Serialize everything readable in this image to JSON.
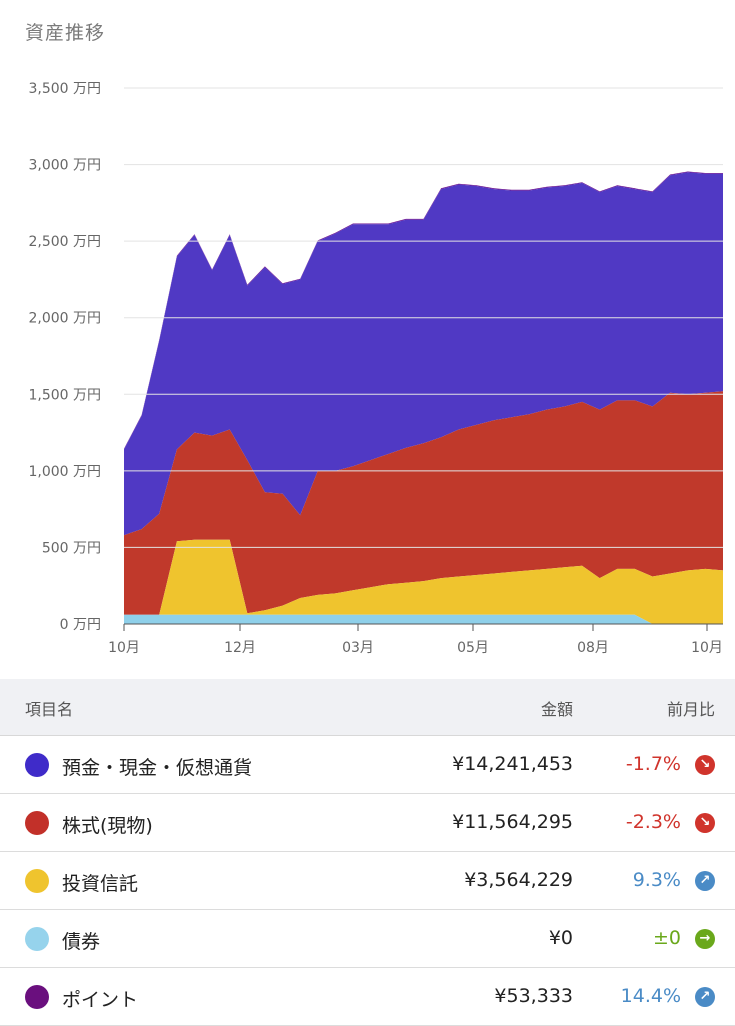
{
  "section_title": "資産推移",
  "chart_data": {
    "type": "area",
    "y_ticks": [
      "3,500 万円",
      "3,000 万円",
      "2,500 万円",
      "2,000 万円",
      "1,500 万円",
      "1,000 万円",
      "500 万円",
      "0 万円"
    ],
    "x_ticks": [
      "10月",
      "12月",
      "03月",
      "05月",
      "08月",
      "10月"
    ],
    "ylim": [
      0,
      3500
    ],
    "stacked": true,
    "series": [
      {
        "name": "債券",
        "color": "#8fd0ea",
        "values": [
          60,
          60,
          60,
          60,
          60,
          60,
          60,
          60,
          60,
          60,
          60,
          60,
          60,
          60,
          60,
          60,
          60,
          60,
          60,
          60,
          60,
          60,
          60,
          60,
          60,
          60,
          60,
          60,
          60,
          60,
          0,
          0,
          0,
          0,
          0
        ]
      },
      {
        "name": "投資信託",
        "color": "#efc42e",
        "values": [
          0,
          0,
          0,
          480,
          490,
          490,
          490,
          10,
          30,
          60,
          110,
          130,
          140,
          160,
          180,
          200,
          210,
          220,
          240,
          250,
          260,
          270,
          280,
          290,
          300,
          310,
          320,
          240,
          300,
          300,
          310,
          330,
          350,
          360,
          350
        ]
      },
      {
        "name": "株式(現物)",
        "color": "#c0392b",
        "values": [
          520,
          560,
          660,
          600,
          700,
          680,
          720,
          1000,
          770,
          730,
          540,
          810,
          800,
          810,
          830,
          850,
          880,
          900,
          920,
          960,
          980,
          1000,
          1010,
          1020,
          1040,
          1050,
          1070,
          1100,
          1100,
          1100,
          1110,
          1180,
          1150,
          1150,
          1170
        ]
      },
      {
        "name": "預金・現金・仮想通貨",
        "color": "#5039c4",
        "values": [
          560,
          740,
          1130,
          1260,
          1290,
          1080,
          1270,
          1140,
          1470,
          1370,
          1540,
          1500,
          1550,
          1580,
          1540,
          1500,
          1490,
          1460,
          1620,
          1600,
          1560,
          1510,
          1480,
          1460,
          1450,
          1440,
          1430,
          1420,
          1400,
          1380,
          1400,
          1420,
          1450,
          1430,
          1420
        ]
      },
      {
        "name": "ポイント",
        "color": "#6a0f8e",
        "values": [
          5,
          5,
          5,
          5,
          5,
          5,
          5,
          5,
          5,
          5,
          5,
          5,
          5,
          5,
          5,
          5,
          5,
          5,
          5,
          5,
          5,
          5,
          5,
          5,
          5,
          5,
          5,
          5,
          5,
          5,
          5,
          5,
          5,
          5,
          5
        ]
      }
    ]
  },
  "table": {
    "headers": {
      "name": "項目名",
      "amount": "金額",
      "change": "前月比"
    },
    "rows": [
      {
        "name": "預金・現金・仮想通貨",
        "amount": "¥14,241,453",
        "change": "-1.7%",
        "color": "#3f2bc9",
        "change_color": "#d0342c",
        "arrow_color": "#d0342c",
        "arrow": "↘"
      },
      {
        "name": "株式(現物)",
        "amount": "¥11,564,295",
        "change": "-2.3%",
        "color": "#c23029",
        "change_color": "#d0342c",
        "arrow_color": "#d0342c",
        "arrow": "↘"
      },
      {
        "name": "投資信託",
        "amount": "¥3,564,229",
        "change": "9.3%",
        "color": "#efc42e",
        "change_color": "#4a8bc6",
        "arrow_color": "#4a8bc6",
        "arrow": "↗"
      },
      {
        "name": "債券",
        "amount": "¥0",
        "change": "±0",
        "color": "#96d3ec",
        "change_color": "#6aa81b",
        "arrow_color": "#6aa81b",
        "arrow": "→"
      },
      {
        "name": "ポイント",
        "amount": "¥53,333",
        "change": "14.4%",
        "color": "#6a0f7e",
        "change_color": "#4a8bc6",
        "arrow_color": "#4a8bc6",
        "arrow": "↗"
      }
    ]
  }
}
